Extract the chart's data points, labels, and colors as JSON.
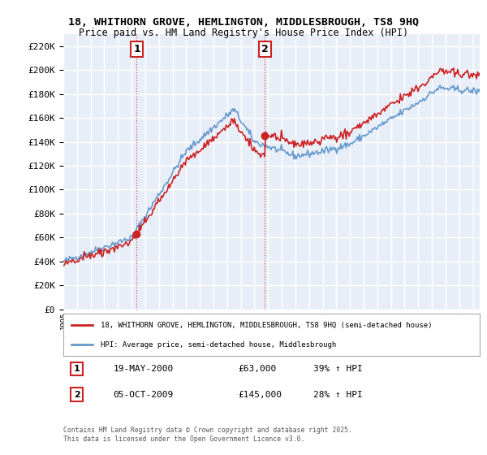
{
  "title_line1": "18, WHITHORN GROVE, HEMLINGTON, MIDDLESBROUGH, TS8 9HQ",
  "title_line2": "Price paid vs. HM Land Registry's House Price Index (HPI)",
  "legend_label1": "18, WHITHORN GROVE, HEMLINGTON, MIDDLESBROUGH, TS8 9HQ (semi-detached house)",
  "legend_label2": "HPI: Average price, semi-detached house, Middlesbrough",
  "annotation1_label": "1",
  "annotation1_date": "19-MAY-2000",
  "annotation1_price": "£63,000",
  "annotation1_hpi": "39% ↑ HPI",
  "annotation2_label": "2",
  "annotation2_date": "05-OCT-2009",
  "annotation2_price": "£145,000",
  "annotation2_hpi": "28% ↑ HPI",
  "footnote": "Contains HM Land Registry data © Crown copyright and database right 2025.\nThis data is licensed under the Open Government Licence v3.0.",
  "sale1_year": 2000.38,
  "sale1_price": 63000,
  "sale2_year": 2009.76,
  "sale2_price": 145000,
  "hpi_color": "#6699cc",
  "property_color": "#cc2222",
  "sale_marker_color": "#cc2222",
  "background_color": "#e8eef8",
  "grid_color": "#ffffff",
  "ylim_min": 0,
  "ylim_max": 230000,
  "xlim_min": 1995,
  "xlim_max": 2025.5,
  "ytick_step": 20000
}
